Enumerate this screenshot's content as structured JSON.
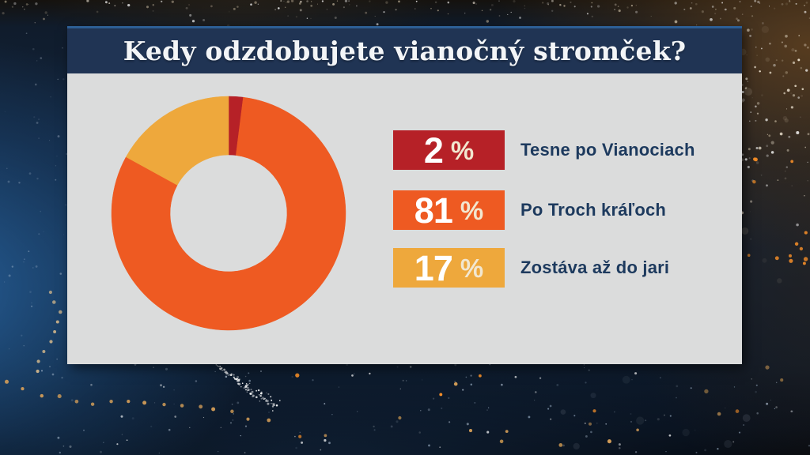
{
  "poll": {
    "question": "Kedy odzdobujete vianočný stromček?"
  },
  "chart_data": {
    "type": "pie",
    "variant": "donut",
    "title": "Kedy odzdobujete vianočný stromček?",
    "categories": [
      "Tesne po Vianociach",
      "Po Troch kráľoch",
      "Zostáva až do jari"
    ],
    "values": [
      2,
      81,
      17
    ],
    "unit": "%",
    "start_angle_deg": 0,
    "direction": "clockwise",
    "inner_radius_ratio": 0.5,
    "legend_position": "right",
    "hole_color": "#dbdcdc",
    "items": [
      {
        "value": "2",
        "suffix": "%",
        "label": "Tesne po Vianociach",
        "color": "#b62127"
      },
      {
        "value": "81",
        "suffix": "%",
        "label": "Po Troch kráľoch",
        "color": "#ee5a22"
      },
      {
        "value": "17",
        "suffix": "%",
        "label": "Zostáva až do jari",
        "color": "#eea83c"
      }
    ]
  },
  "theme": {
    "title_bar_bg": "#203454",
    "title_text": "#f3f5f7",
    "accent_line": "#2d5f95",
    "panel_bg": "#dbdcdc",
    "label_text": "#1d3a5e",
    "value_text": "#ffffff",
    "percent_text": "#f2e7d0",
    "bg_navy": "#12233a",
    "bg_brown_glow": "#3e2c18",
    "bg_blue_glow": "#2968a7",
    "dot_white": "#ffffff",
    "dot_amber": "#d9a159",
    "dot_orange": "#f78f28"
  }
}
